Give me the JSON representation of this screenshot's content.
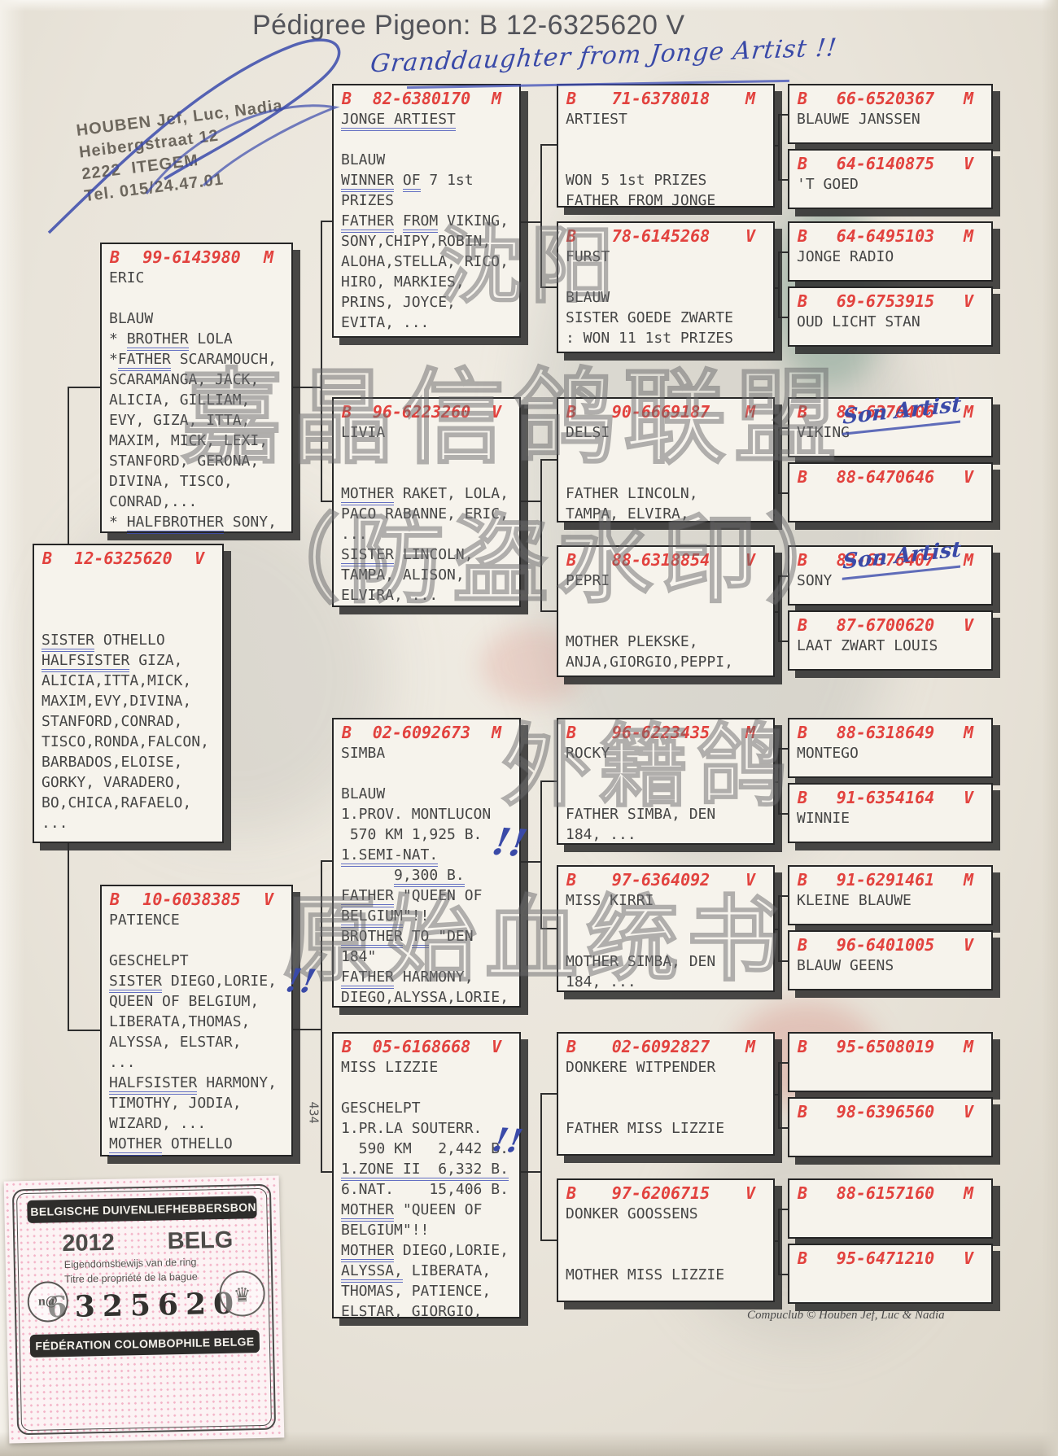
{
  "page": {
    "title": "Pédigree Pigeon: B   12-6325620 V",
    "handwritten_note": "Granddaughter from Jonge Artist !!",
    "footer_credit": "Compuclub © Houben Jef, Luc & Nadia",
    "side_number": "434"
  },
  "owner_stamp": {
    "line1": "HOUBEN Jef, Luc, Nadia",
    "line2": "Heibergstraat 12",
    "line3": "2222  ITEGEM",
    "line4": "Tel. 015/24.47.01"
  },
  "watermark": {
    "lines": [
      "沈阳",
      "嘉晶信鸽联盟",
      "（防盗水印）",
      "外籍鸽",
      "原始血统书"
    ]
  },
  "ring_stamp": {
    "top_banner": "BELGISCHE DUIVENLIEFHEBBERSBOND",
    "year": "2012",
    "country": "BELG",
    "line_nl": "Eigendomsbewijs van de ring",
    "line_fr": "Titre de propriété de la bague",
    "ring_number": "6325620",
    "bottom_banner": "FÉDÉRATION COLOMBOPHILE BELGE",
    "left_badge": "n@"
  },
  "annotations": [
    {
      "id": "viking-note",
      "text": "Son Artist"
    },
    {
      "id": "sony-note",
      "text": "Son Artist"
    },
    {
      "id": "simba-marks",
      "text": "!!"
    },
    {
      "id": "patience-marks",
      "text": "!!"
    },
    {
      "id": "lizzie-marks",
      "text": "!!"
    }
  ],
  "boxes": [
    {
      "id": "subject",
      "country": "B",
      "ring": "12-6325620",
      "sex": "V",
      "lines": [
        "",
        "",
        "",
        "«SISTER» OTHELLO",
        "«HALFSISTER» GIZA,",
        "ALICIA,ITTA,MICK,",
        "MAXIM,EVY,DIVINA,",
        "STANFORD,CONRAD,",
        "TISCO,RONDA,FALCON,",
        "BARBADOS,ELOISE,",
        "GORKY, VARADERO,",
        "BO,CHICA,RAFAELO,",
        "..."
      ]
    },
    {
      "id": "eric",
      "country": "B",
      "ring": "99-6143980",
      "sex": "M",
      "lines": [
        "ERIC",
        "",
        "BLAUW",
        "* «BROTHER» LOLA",
        "*«FATHER» SCARAMOUCH,",
        "SCARAMANGA, JACK,",
        "ALICIA, GILLIAM,",
        "EVY, GIZA, ITTA,",
        "MAXIM, MICK, LEXI,",
        "STANFORD, GERONA,",
        "DIVINA, TISCO,",
        "CONRAD,...",
        "* «HALFBROTHER» SONY,"
      ]
    },
    {
      "id": "patience",
      "country": "B",
      "ring": "10-6038385",
      "sex": "V",
      "lines": [
        "PATIENCE",
        "",
        "GESCHELPT",
        "«SISTER» DIEGO,LORIE,",
        "QUEEN OF BELGIUM,",
        "LIBERATA,THOMAS,",
        "ALYSSA, ELSTAR,",
        "...",
        "«HALFSISTER» HARMONY,",
        "TIMOTHY, JODIA,",
        "WIZARD, ...",
        "«MOTHER» OTHELLO"
      ]
    },
    {
      "id": "jonge-artiest",
      "country": "B",
      "ring": "82-6380170",
      "sex": "M",
      "lines": [
        "«JONGE ARTIEST»",
        "",
        "BLAUW",
        "«WINNER» «OF» 7 1st",
        "PRIZES",
        "«FATHER» «FROM» VIKING,",
        "SONY,CHIPY,ROBIN,",
        "ALOHA,STELLA, RICO,",
        "HIRO, MARKIES,",
        "PRINS, JOYCE,",
        "EVITA, ..."
      ]
    },
    {
      "id": "livia",
      "country": "B",
      "ring": "96-6223260",
      "sex": "V",
      "lines": [
        "LIVIA",
        "",
        "",
        "«MOTHER» RAKET, LOLA,",
        "PACO RABANNE, ERIC,",
        "...",
        "«SISTER» LINCOLN,",
        "TAMPA, ALISON,",
        "ELVIRA, ..."
      ]
    },
    {
      "id": "simba",
      "country": "B",
      "ring": "02-6092673",
      "sex": "M",
      "lines": [
        "SIMBA",
        "",
        "BLAUW",
        "1.PROV. MONTLUCON",
        " 570 KM 1,925 B.",
        "«1.SEMI-NAT.»",
        "      «9,300 B.»",
        "«FATHER» \"QUEEN OF",
        "«BELGIUM»\"!!",
        "«BROTHER» «TO» \"DEN",
        "184\"",
        "«FATHER» HARMONY,",
        "DIEGO,ALYSSA,LORIE,"
      ]
    },
    {
      "id": "miss-lizzie",
      "country": "B",
      "ring": "05-6168668",
      "sex": "V",
      "lines": [
        "MISS LIZZIE",
        "",
        "GESCHELPT",
        "1.PR.LA SOUTERR.",
        "  590 KM   2,442 B.",
        "«1.ZONE II  6,332 B.»",
        "6.NAT.    15,406 B.",
        "«MOTHER» \"QUEEN OF",
        "BELGIUM\"!!",
        "«MOTHER» DIEGO,LORIE,",
        "«ALYSSA,» LIBERATA,",
        "THOMAS, PATIENCE,",
        "ELSTAR, GIORGIO,"
      ]
    },
    {
      "id": "artiest",
      "country": "B",
      "ring": "71-6378018",
      "sex": "M",
      "lines": [
        "ARTIEST",
        "",
        "",
        "WON 5 1st PRIZES",
        "FATHER FROM JONGE"
      ]
    },
    {
      "id": "furst",
      "country": "B",
      "ring": "78-6145268",
      "sex": "V",
      "lines": [
        "FURST",
        "",
        "BLAUW",
        "SISTER GOEDE ZWARTE",
        ": WON 11 1st PRIZES"
      ]
    },
    {
      "id": "delsi",
      "country": "B",
      "ring": "90-6669187",
      "sex": "M",
      "lines": [
        "DELSI",
        "",
        "",
        "FATHER LINCOLN,",
        "TAMPA, ELVIRA,"
      ]
    },
    {
      "id": "pepri",
      "country": "B",
      "ring": "88-6318854",
      "sex": "V",
      "lines": [
        "PEPRI",
        "",
        "",
        "MOTHER PLEKSKE,",
        "ANJA,GIORGIO,PEPPI,"
      ]
    },
    {
      "id": "rocky",
      "country": "B",
      "ring": "96-6223435",
      "sex": "M",
      "lines": [
        "ROCKY",
        "",
        "",
        "FATHER SIMBA, DEN",
        "184, ..."
      ]
    },
    {
      "id": "miss-kirri",
      "country": "B",
      "ring": "97-6364092",
      "sex": "V",
      "lines": [
        "MISS KIRRI",
        "",
        "",
        "MOTHER SIMBA, DEN",
        "184, ..."
      ]
    },
    {
      "id": "donkere-witpender",
      "country": "B",
      "ring": "02-6092827",
      "sex": "M",
      "lines": [
        "DONKERE WITPENDER",
        "",
        "",
        "FATHER MISS LIZZIE"
      ]
    },
    {
      "id": "donker-goossens",
      "country": "B",
      "ring": "97-6206715",
      "sex": "V",
      "lines": [
        "DONKER GOOSSENS",
        "",
        "",
        "MOTHER MISS LIZZIE"
      ]
    },
    {
      "id": "blauwe-janssen",
      "country": "B",
      "ring": "66-6520367",
      "sex": "M",
      "lines": [
        "BLAUWE JANSSEN"
      ]
    },
    {
      "id": "t-goed",
      "country": "B",
      "ring": "64-6140875",
      "sex": "V",
      "lines": [
        "'T GOED"
      ]
    },
    {
      "id": "jonge-radio",
      "country": "B",
      "ring": "64-6495103",
      "sex": "M",
      "lines": [
        "JONGE RADIO"
      ]
    },
    {
      "id": "oud-licht-stan",
      "country": "B",
      "ring": "69-6753915",
      "sex": "V",
      "lines": [
        "OUD LICHT STAN"
      ]
    },
    {
      "id": "viking",
      "country": "B",
      "ring": "83-6376406",
      "sex": "M",
      "lines": [
        "VIKING"
      ]
    },
    {
      "id": "hen-88-6470646",
      "country": "B",
      "ring": "88-6470646",
      "sex": "V",
      "lines": []
    },
    {
      "id": "sony",
      "country": "B",
      "ring": "83-6376407",
      "sex": "M",
      "lines": [
        "SONY"
      ]
    },
    {
      "id": "laat-zwart-louis",
      "country": "B",
      "ring": "87-6700620",
      "sex": "V",
      "lines": [
        "LAAT ZWART LOUIS"
      ]
    },
    {
      "id": "montego",
      "country": "B",
      "ring": "88-6318649",
      "sex": "M",
      "lines": [
        "MONTEGO"
      ]
    },
    {
      "id": "winnie",
      "country": "B",
      "ring": "91-6354164",
      "sex": "V",
      "lines": [
        "WINNIE"
      ]
    },
    {
      "id": "kleine-blauwe",
      "country": "B",
      "ring": "91-6291461",
      "sex": "M",
      "lines": [
        "KLEINE BLAUWE"
      ]
    },
    {
      "id": "blauw-geens",
      "country": "B",
      "ring": "96-6401005",
      "sex": "V",
      "lines": [
        "BLAUW GEENS"
      ]
    },
    {
      "id": "cock-95-6508019",
      "country": "B",
      "ring": "95-6508019",
      "sex": "M",
      "lines": []
    },
    {
      "id": "hen-98-6396560",
      "country": "B",
      "ring": "98-6396560",
      "sex": "V",
      "lines": []
    },
    {
      "id": "cock-88-6157160",
      "country": "B",
      "ring": "88-6157160",
      "sex": "M",
      "lines": []
    },
    {
      "id": "hen-95-6471210",
      "country": "B",
      "ring": "95-6471210",
      "sex": "V",
      "lines": []
    }
  ]
}
